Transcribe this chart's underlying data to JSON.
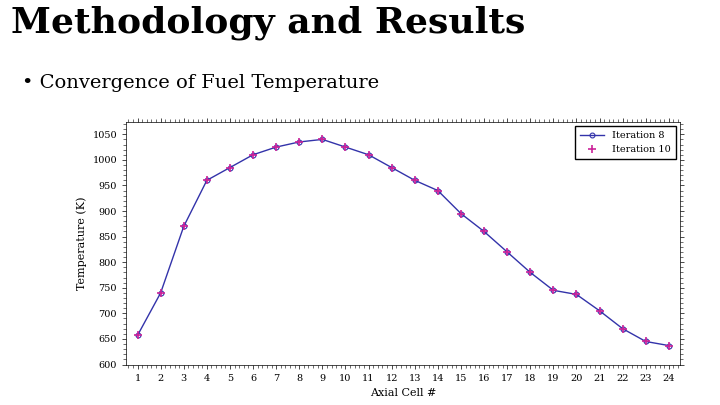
{
  "title": "Methodology and Results",
  "subtitle": "Convergence of Fuel Temperature",
  "xlabel": "Axial Cell #",
  "ylabel": "Temperature (K)",
  "xlim": [
    0.5,
    24.5
  ],
  "ylim": [
    600,
    1075
  ],
  "yticks": [
    600,
    650,
    700,
    750,
    800,
    850,
    900,
    950,
    1000,
    1050
  ],
  "xticks": [
    1,
    2,
    3,
    4,
    5,
    6,
    7,
    8,
    9,
    10,
    11,
    12,
    13,
    14,
    15,
    16,
    17,
    18,
    19,
    20,
    21,
    22,
    23,
    24
  ],
  "iter8_color": "#3333aa",
  "iter10_color": "#cc2299",
  "background": "#ffffff",
  "slide_bg": "#ffffff",
  "teal_strip": "#4aafaa",
  "series": {
    "iter8": {
      "label": "Iteration 8",
      "x": [
        1,
        2,
        3,
        4,
        5,
        6,
        7,
        8,
        9,
        10,
        11,
        12,
        13,
        14,
        15,
        16,
        17,
        18,
        19,
        20,
        21,
        22,
        23,
        24
      ],
      "y": [
        657,
        740,
        870,
        960,
        985,
        1010,
        1025,
        1035,
        1040,
        1025,
        1010,
        985,
        960,
        940,
        895,
        860,
        820,
        780,
        745,
        737,
        705,
        670,
        645,
        637
      ]
    },
    "iter10": {
      "label": "Iteration 10",
      "x": [
        1,
        2,
        3,
        4,
        5,
        6,
        7,
        8,
        9,
        10,
        11,
        12,
        13,
        14,
        15,
        16,
        17,
        18,
        19,
        20,
        21,
        22,
        23,
        24
      ],
      "y": [
        657,
        740,
        870,
        960,
        985,
        1010,
        1025,
        1035,
        1040,
        1025,
        1010,
        985,
        960,
        940,
        895,
        860,
        820,
        780,
        745,
        737,
        705,
        670,
        645,
        637
      ]
    }
  },
  "title_fontsize": 26,
  "subtitle_fontsize": 14,
  "axis_fontsize": 8,
  "tick_fontsize": 7,
  "legend_fontsize": 7
}
